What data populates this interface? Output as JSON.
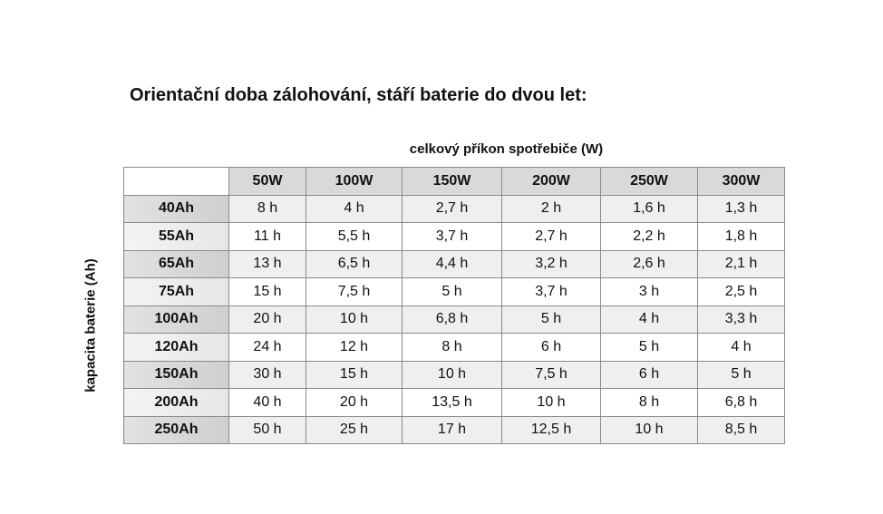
{
  "title": "Orientační doba zálohování, stáří baterie do dvou let:",
  "column_group_label": "celkový příkon spotřebiče (W)",
  "row_group_label": "kapacita baterie (Ah)",
  "columns": [
    "50W",
    "100W",
    "150W",
    "200W",
    "250W",
    "300W"
  ],
  "rows": [
    {
      "label": "40Ah",
      "values": [
        "8 h",
        "4 h",
        "2,7 h",
        "2 h",
        "1,6 h",
        "1,3 h"
      ]
    },
    {
      "label": "55Ah",
      "values": [
        "11 h",
        "5,5 h",
        "3,7 h",
        "2,7 h",
        "2,2 h",
        "1,8 h"
      ]
    },
    {
      "label": "65Ah",
      "values": [
        "13 h",
        "6,5 h",
        "4,4 h",
        "3,2 h",
        "2,6 h",
        "2,1 h"
      ]
    },
    {
      "label": "75Ah",
      "values": [
        "15 h",
        "7,5 h",
        "5 h",
        "3,7 h",
        "3 h",
        "2,5 h"
      ]
    },
    {
      "label": "100Ah",
      "values": [
        "20 h",
        "10 h",
        "6,8 h",
        "5 h",
        "4 h",
        "3,3 h"
      ]
    },
    {
      "label": "120Ah",
      "values": [
        "24 h",
        "12 h",
        "8 h",
        "6 h",
        "5 h",
        "4 h"
      ]
    },
    {
      "label": "150Ah",
      "values": [
        "30 h",
        "15 h",
        "10 h",
        "7,5 h",
        "6 h",
        "5 h"
      ]
    },
    {
      "label": "200Ah",
      "values": [
        "40 h",
        "20 h",
        "13,5 h",
        "10 h",
        "8 h",
        "6,8 h"
      ]
    },
    {
      "label": "250Ah",
      "values": [
        "50 h",
        "25 h",
        "17 h",
        "12,5 h",
        "10 h",
        "8,5 h"
      ]
    }
  ]
}
